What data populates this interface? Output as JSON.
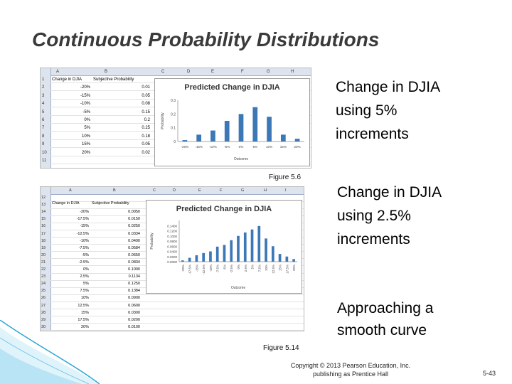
{
  "slide": {
    "title": "Continuous Probability Distributions",
    "caption1": "Change in DJIA using 5% increments",
    "caption2": "Change in DJIA using 2.5% increments",
    "caption3": "Approaching a smooth curve",
    "figure1_label": "Figure 5.6",
    "figure2_label": "Figure 5.14",
    "copyright_line1": "Copyright © 2013 Pearson Education, Inc.",
    "copyright_line2": "publishing as Prentice Hall",
    "page_number": "5-43",
    "accent_color": "#2aa4d5",
    "bar_color": "#3c78b6"
  },
  "sheet1": {
    "columns": [
      "A",
      "B",
      "C",
      "D",
      "E",
      "F",
      "G",
      "H"
    ],
    "header_row": [
      "Change in DJIA",
      "Subjective Probability"
    ],
    "rows": [
      [
        "-20%",
        "0.01"
      ],
      [
        "-15%",
        "0.05"
      ],
      [
        "-10%",
        "0.08"
      ],
      [
        "-5%",
        "0.15"
      ],
      [
        "0%",
        "0.2"
      ],
      [
        "5%",
        "0.25"
      ],
      [
        "10%",
        "0.18"
      ],
      [
        "15%",
        "0.05"
      ],
      [
        "20%",
        "0.02"
      ]
    ],
    "row_numbers": [
      "1",
      "2",
      "3",
      "4",
      "5",
      "6",
      "7",
      "8",
      "9",
      "10",
      "11"
    ]
  },
  "sheet2": {
    "columns": [
      "A",
      "B",
      "C",
      "D",
      "E",
      "F",
      "G",
      "H",
      "I"
    ],
    "header_row": [
      "Change in DJIA",
      "Subjective Probability"
    ],
    "rows": [
      [
        "-20%",
        "0.0050"
      ],
      [
        "-17.5%",
        "0.0150"
      ],
      [
        "-15%",
        "0.0250"
      ],
      [
        "-12.5%",
        "0.0334"
      ],
      [
        "-10%",
        "0.0400"
      ],
      [
        "-7.5%",
        "0.0584"
      ],
      [
        "-5%",
        "0.0650"
      ],
      [
        "-2.5%",
        "0.0834"
      ],
      [
        "0%",
        "0.1000"
      ],
      [
        "2.5%",
        "0.1134"
      ],
      [
        "5%",
        "0.1250"
      ],
      [
        "7.5%",
        "0.1384"
      ],
      [
        "10%",
        "0.0900"
      ],
      [
        "12.5%",
        "0.0600"
      ],
      [
        "15%",
        "0.0300"
      ],
      [
        "17.5%",
        "0.0200"
      ],
      [
        "20%",
        "0.0100"
      ]
    ],
    "row_numbers": [
      "12",
      "13",
      "14",
      "15",
      "16",
      "17",
      "18",
      "19",
      "20",
      "21",
      "22",
      "23",
      "24",
      "25",
      "26",
      "27",
      "28",
      "29",
      "30"
    ]
  },
  "chart_data": [
    {
      "type": "bar",
      "title": "Predicted Change in DJIA",
      "xlabel": "Outcome",
      "ylabel": "Probability",
      "categories": [
        "-20%",
        "-15%",
        "-10%",
        "-5%",
        "0%",
        "5%",
        "10%",
        "15%",
        "20%"
      ],
      "values": [
        0.01,
        0.05,
        0.08,
        0.15,
        0.2,
        0.25,
        0.18,
        0.05,
        0.02
      ],
      "ylim": [
        0,
        0.3
      ],
      "yticks": [
        "0",
        "0.1",
        "0.2",
        "0.3"
      ],
      "grid": false
    },
    {
      "type": "bar",
      "title": "Predicted Change in DJIA",
      "xlabel": "Outcome",
      "ylabel": "Probability",
      "categories": [
        "-20%",
        "-17.5%",
        "-15%",
        "-12.5%",
        "-10%",
        "-7.5%",
        "-5%",
        "-2.5%",
        "0%",
        "2.5%",
        "5%",
        "7.5%",
        "10%",
        "12.5%",
        "15%",
        "17.5%",
        "20%"
      ],
      "values": [
        0.005,
        0.015,
        0.025,
        0.0334,
        0.04,
        0.0584,
        0.065,
        0.0834,
        0.1,
        0.1134,
        0.125,
        0.1384,
        0.09,
        0.06,
        0.03,
        0.02,
        0.01
      ],
      "ylim": [
        0,
        0.16
      ],
      "yticks": [
        "0.0000",
        "0.0200",
        "0.0400",
        "0.0600",
        "0.0800",
        "0.1000",
        "0.1200",
        "0.1400"
      ],
      "grid": false
    }
  ]
}
